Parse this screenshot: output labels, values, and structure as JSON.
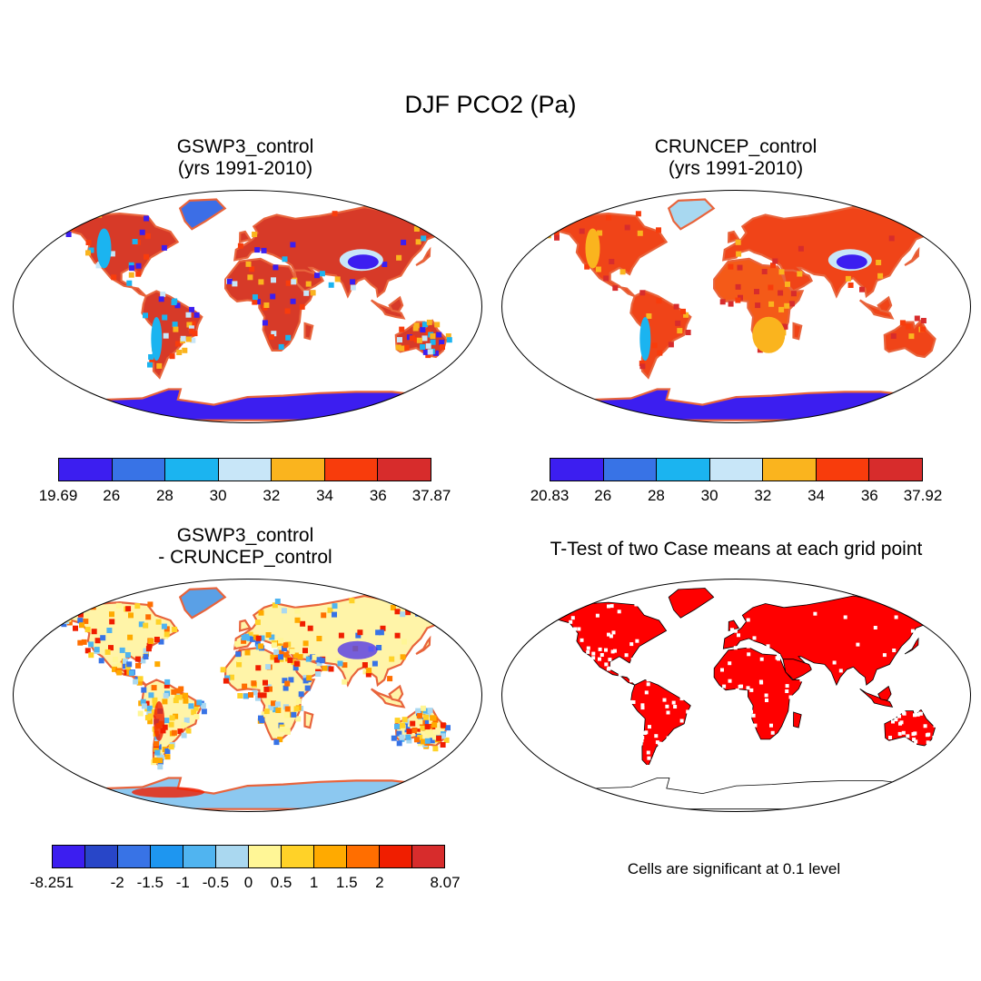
{
  "figure": {
    "title": "DJF PCO2 (Pa)"
  },
  "panels": [
    {
      "id": "gswp3",
      "title": "GSWP3_control\n(yrs 1991-2010)",
      "colorbar": {
        "colors": [
          "#3c1ef0",
          "#3873e6",
          "#1bb4f0",
          "#c8e6f8",
          "#fab41e",
          "#f83c0c",
          "#d72c2c"
        ],
        "labels": [
          "19.69",
          "26",
          "28",
          "30",
          "32",
          "34",
          "36",
          "37.87"
        ]
      }
    },
    {
      "id": "cruncep",
      "title": "CRUNCEP_control\n(yrs 1991-2010)",
      "colorbar": {
        "colors": [
          "#3c1ef0",
          "#3873e6",
          "#1bb4f0",
          "#c8e6f8",
          "#fab41e",
          "#f83c0c",
          "#d72c2c"
        ],
        "labels": [
          "20.83",
          "26",
          "28",
          "30",
          "32",
          "34",
          "36",
          "37.92"
        ]
      }
    },
    {
      "id": "diff",
      "title": "GSWP3_control\n- CRUNCEP_control",
      "colorbar": {
        "colors": [
          "#3c1ef0",
          "#2846c8",
          "#3873e6",
          "#1e96f0",
          "#50b4f0",
          "#aad8f0",
          "#fff696",
          "#ffd228",
          "#ffaa00",
          "#ff6e00",
          "#f01e00",
          "#d72c2c"
        ],
        "labels": [
          "-8.251",
          "",
          "-2",
          "-1.5",
          "-1",
          "-0.5",
          "0",
          "0.5",
          "1",
          "1.5",
          "2",
          "",
          "8.07"
        ]
      }
    },
    {
      "id": "ttest",
      "title": "T-Test of two Case means at each grid point",
      "note": "Cells are significant at 0.1 level"
    }
  ]
}
